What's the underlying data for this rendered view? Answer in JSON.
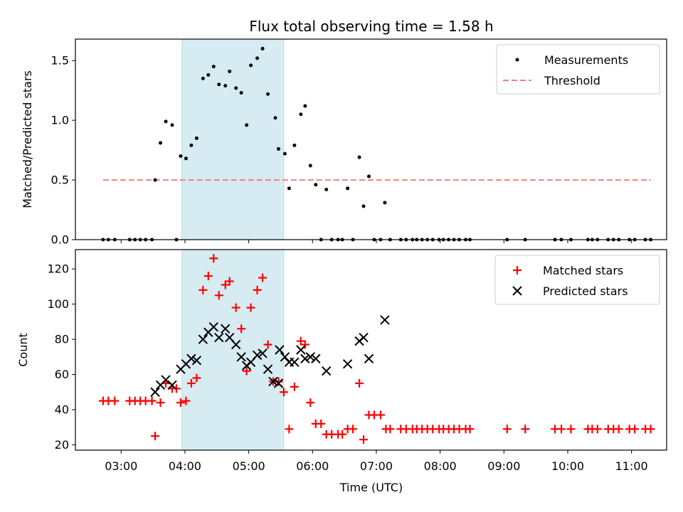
{
  "title": "Flux total observing time = 1.58 h",
  "colors": {
    "highlight": "#add8e6",
    "measurement": "#000000",
    "threshold": "#f08080",
    "matched": "#ff0000",
    "predicted": "#000000"
  },
  "chart_data": [
    {
      "type": "scatter",
      "ylabel": "Matched/Predicted stars",
      "ylim": [
        0,
        1.68
      ],
      "yticks": [
        0.0,
        0.5,
        1.0,
        1.5
      ],
      "ytick_labels": [
        "0.0",
        "0.5",
        "1.0",
        "1.5"
      ],
      "legend_position": "top-right",
      "highlight_span": [
        "03:57",
        "05:33"
      ],
      "series": [
        {
          "name": "Measurements",
          "points": [
            [
              "02:43",
              0
            ],
            [
              "02:48",
              0
            ],
            [
              "02:54",
              0
            ],
            [
              "03:08",
              0
            ],
            [
              "03:13",
              0
            ],
            [
              "03:18",
              0
            ],
            [
              "03:23",
              0
            ],
            [
              "03:29",
              0
            ],
            [
              "03:32",
              0.5
            ],
            [
              "03:37",
              0.81
            ],
            [
              "03:42",
              0.99
            ],
            [
              "03:48",
              0.96
            ],
            [
              "03:52",
              0
            ],
            [
              "03:56",
              0.7
            ],
            [
              "04:01",
              0.68
            ],
            [
              "04:06",
              0.79
            ],
            [
              "04:11",
              0.85
            ],
            [
              "04:17",
              1.35
            ],
            [
              "04:22",
              1.38
            ],
            [
              "04:27",
              1.45
            ],
            [
              "04:32",
              1.3
            ],
            [
              "04:38",
              1.29
            ],
            [
              "04:42",
              1.41
            ],
            [
              "04:48",
              1.27
            ],
            [
              "04:53",
              1.23
            ],
            [
              "04:58",
              0.96
            ],
            [
              "05:02",
              1.46
            ],
            [
              "05:08",
              1.52
            ],
            [
              "05:13",
              1.6
            ],
            [
              "05:18",
              1.22
            ],
            [
              "05:25",
              1.02
            ],
            [
              "05:28",
              0.76
            ],
            [
              "05:34",
              0.72
            ],
            [
              "05:38",
              0.43
            ],
            [
              "05:43",
              0.79
            ],
            [
              "05:49",
              1.05
            ],
            [
              "05:53",
              1.12
            ],
            [
              "05:58",
              0.62
            ],
            [
              "06:03",
              0.46
            ],
            [
              "06:08",
              0
            ],
            [
              "06:13",
              0.42
            ],
            [
              "06:18",
              0
            ],
            [
              "06:24",
              0
            ],
            [
              "06:28",
              0
            ],
            [
              "06:33",
              0.43
            ],
            [
              "06:38",
              0
            ],
            [
              "06:44",
              0.69
            ],
            [
              "06:48",
              0.28
            ],
            [
              "06:53",
              0.53
            ],
            [
              "06:58",
              0
            ],
            [
              "07:04",
              0
            ],
            [
              "07:08",
              0.31
            ],
            [
              "07:13",
              0
            ],
            [
              "07:23",
              0
            ],
            [
              "07:28",
              0
            ],
            [
              "07:34",
              0
            ],
            [
              "07:38",
              0
            ],
            [
              "07:43",
              0
            ],
            [
              "07:48",
              0
            ],
            [
              "07:53",
              0
            ],
            [
              "07:59",
              0
            ],
            [
              "08:03",
              0
            ],
            [
              "08:08",
              0
            ],
            [
              "08:13",
              0
            ],
            [
              "08:18",
              0
            ],
            [
              "08:24",
              0
            ],
            [
              "08:28",
              0
            ],
            [
              "09:03",
              0
            ],
            [
              "09:20",
              0
            ],
            [
              "09:48",
              0
            ],
            [
              "09:54",
              0
            ],
            [
              "10:03",
              0
            ],
            [
              "10:19",
              0
            ],
            [
              "10:23",
              0
            ],
            [
              "10:28",
              0
            ],
            [
              "10:38",
              0
            ],
            [
              "10:43",
              0
            ],
            [
              "10:48",
              0
            ],
            [
              "10:58",
              0
            ],
            [
              "11:03",
              0
            ],
            [
              "11:13",
              0
            ],
            [
              "11:18",
              0
            ]
          ]
        },
        {
          "name": "Threshold",
          "style": "dashed",
          "points": [
            [
              "02:43",
              0.5
            ],
            [
              "11:18",
              0.5
            ]
          ]
        }
      ]
    },
    {
      "type": "scatter",
      "xlabel": "Time (UTC)",
      "ylabel": "Count",
      "ylim": [
        17,
        131
      ],
      "yticks": [
        20,
        40,
        60,
        80,
        100,
        120
      ],
      "ytick_labels": [
        "20",
        "40",
        "60",
        "80",
        "100",
        "120"
      ],
      "xtick_labels": [
        "03:00",
        "04:00",
        "05:00",
        "06:00",
        "07:00",
        "08:00",
        "09:00",
        "10:00",
        "11:00"
      ],
      "xticks": [
        "03:00",
        "04:00",
        "05:00",
        "06:00",
        "07:00",
        "08:00",
        "09:00",
        "10:00",
        "11:00"
      ],
      "xlim": [
        "02:17",
        "11:33"
      ],
      "legend_position": "top-right",
      "highlight_span": [
        "03:57",
        "05:33"
      ],
      "series": [
        {
          "name": "Matched stars",
          "marker": "plus",
          "points": [
            [
              "02:43",
              45
            ],
            [
              "02:48",
              45
            ],
            [
              "02:54",
              45
            ],
            [
              "03:08",
              45
            ],
            [
              "03:13",
              45
            ],
            [
              "03:18",
              45
            ],
            [
              "03:23",
              45
            ],
            [
              "03:29",
              45
            ],
            [
              "03:32",
              25
            ],
            [
              "03:37",
              44
            ],
            [
              "03:42",
              55
            ],
            [
              "03:48",
              52
            ],
            [
              "03:52",
              52
            ],
            [
              "03:56",
              44
            ],
            [
              "04:01",
              45
            ],
            [
              "04:06",
              55
            ],
            [
              "04:11",
              58
            ],
            [
              "04:17",
              108
            ],
            [
              "04:22",
              116
            ],
            [
              "04:27",
              126
            ],
            [
              "04:32",
              105
            ],
            [
              "04:38",
              111
            ],
            [
              "04:42",
              113
            ],
            [
              "04:48",
              98
            ],
            [
              "04:53",
              86
            ],
            [
              "04:58",
              62
            ],
            [
              "05:02",
              98
            ],
            [
              "05:08",
              108
            ],
            [
              "05:13",
              115
            ],
            [
              "05:18",
              77
            ],
            [
              "05:23",
              56
            ],
            [
              "05:28",
              56
            ],
            [
              "05:33",
              50
            ],
            [
              "05:38",
              29
            ],
            [
              "05:43",
              53
            ],
            [
              "05:49",
              79
            ],
            [
              "05:53",
              77
            ],
            [
              "05:58",
              44
            ],
            [
              "06:03",
              32
            ],
            [
              "06:08",
              32
            ],
            [
              "06:13",
              26
            ],
            [
              "06:18",
              26
            ],
            [
              "06:24",
              26
            ],
            [
              "06:28",
              26
            ],
            [
              "06:33",
              29
            ],
            [
              "06:38",
              29
            ],
            [
              "06:44",
              55
            ],
            [
              "06:48",
              23
            ],
            [
              "06:53",
              37
            ],
            [
              "06:58",
              37
            ],
            [
              "07:04",
              37
            ],
            [
              "07:09",
              29
            ],
            [
              "07:13",
              29
            ],
            [
              "07:23",
              29
            ],
            [
              "07:28",
              29
            ],
            [
              "07:34",
              29
            ],
            [
              "07:38",
              29
            ],
            [
              "07:43",
              29
            ],
            [
              "07:48",
              29
            ],
            [
              "07:53",
              29
            ],
            [
              "07:59",
              29
            ],
            [
              "08:03",
              29
            ],
            [
              "08:08",
              29
            ],
            [
              "08:13",
              29
            ],
            [
              "08:18",
              29
            ],
            [
              "08:24",
              29
            ],
            [
              "08:28",
              29
            ],
            [
              "09:03",
              29
            ],
            [
              "09:20",
              29
            ],
            [
              "09:48",
              29
            ],
            [
              "09:54",
              29
            ],
            [
              "10:03",
              29
            ],
            [
              "10:19",
              29
            ],
            [
              "10:23",
              29
            ],
            [
              "10:28",
              29
            ],
            [
              "10:38",
              29
            ],
            [
              "10:43",
              29
            ],
            [
              "10:48",
              29
            ],
            [
              "10:58",
              29
            ],
            [
              "11:03",
              29
            ],
            [
              "11:13",
              29
            ],
            [
              "11:18",
              29
            ]
          ]
        },
        {
          "name": "Predicted stars",
          "marker": "x",
          "points": [
            [
              "03:32",
              50
            ],
            [
              "03:37",
              54
            ],
            [
              "03:42",
              57
            ],
            [
              "03:48",
              54
            ],
            [
              "03:56",
              63
            ],
            [
              "04:01",
              66
            ],
            [
              "04:06",
              69
            ],
            [
              "04:11",
              68
            ],
            [
              "04:17",
              80
            ],
            [
              "04:22",
              84
            ],
            [
              "04:27",
              87
            ],
            [
              "04:32",
              81
            ],
            [
              "04:38",
              86
            ],
            [
              "04:42",
              81
            ],
            [
              "04:48",
              77
            ],
            [
              "04:53",
              70
            ],
            [
              "04:58",
              65
            ],
            [
              "05:02",
              67
            ],
            [
              "05:08",
              71
            ],
            [
              "05:13",
              72
            ],
            [
              "05:18",
              63
            ],
            [
              "05:23",
              56
            ],
            [
              "05:28",
              55
            ],
            [
              "05:29",
              74
            ],
            [
              "05:34",
              70
            ],
            [
              "05:38",
              67
            ],
            [
              "05:43",
              67
            ],
            [
              "05:49",
              74
            ],
            [
              "05:53",
              69
            ],
            [
              "05:58",
              70
            ],
            [
              "06:03",
              69
            ],
            [
              "06:13",
              62
            ],
            [
              "06:33",
              66
            ],
            [
              "06:44",
              79
            ],
            [
              "06:48",
              81
            ],
            [
              "06:53",
              69
            ],
            [
              "07:08",
              91
            ]
          ]
        }
      ]
    }
  ]
}
